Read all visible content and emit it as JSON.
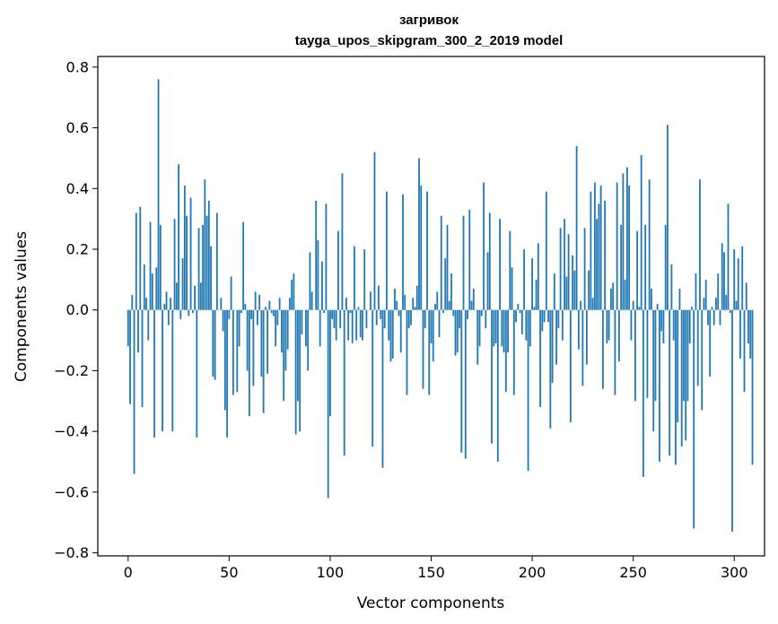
{
  "chart_data": {
    "type": "bar",
    "title": "загривок",
    "subtitle": "tayga_upos_skipgram_300_2_2019 model",
    "xlabel": "Vector components",
    "ylabel": "Components values",
    "xlim": [
      -15,
      315
    ],
    "ylim": [
      -0.81,
      0.835
    ],
    "xticks": [
      0,
      50,
      100,
      150,
      200,
      250,
      300
    ],
    "yticks": [
      -0.8,
      -0.6,
      -0.4,
      -0.2,
      0.0,
      0.2,
      0.4,
      0.6,
      0.8
    ],
    "ytick_labels": [
      "−0.8",
      "−0.6",
      "−0.4",
      "−0.2",
      "0.0",
      "0.2",
      "0.4",
      "0.6",
      "0.8"
    ],
    "bar_color": "#1f77b4",
    "values": [
      -0.12,
      -0.31,
      0.05,
      -0.54,
      0.32,
      -0.14,
      0.34,
      -0.32,
      0.15,
      0.04,
      -0.1,
      0.29,
      0.12,
      -0.42,
      0.14,
      0.76,
      0.28,
      -0.4,
      0.02,
      0.06,
      -0.05,
      0.04,
      -0.4,
      0.3,
      0.09,
      0.48,
      -0.03,
      0.17,
      0.41,
      0.31,
      -0.02,
      0.37,
      -0.01,
      0.08,
      -0.42,
      0.27,
      0.09,
      0.28,
      0.43,
      0.31,
      0.36,
      0.21,
      -0.22,
      -0.23,
      0.32,
      0.0,
      0.04,
      -0.07,
      -0.33,
      -0.42,
      -0.03,
      0.11,
      -0.28,
      0.0,
      -0.27,
      -0.12,
      -0.01,
      0.29,
      0.02,
      -0.2,
      -0.35,
      -0.03,
      -0.25,
      0.06,
      -0.05,
      0.05,
      -0.22,
      -0.34,
      0.01,
      -0.21,
      0.03,
      -0.01,
      -0.02,
      -0.12,
      -0.05,
      0.04,
      -0.14,
      -0.3,
      -0.2,
      -0.13,
      0.04,
      0.1,
      0.12,
      -0.41,
      -0.3,
      -0.4,
      -0.08,
      0.0,
      -0.12,
      -0.2,
      0.19,
      0.06,
      0.0,
      0.36,
      0.23,
      -0.12,
      0.16,
      -0.01,
      0.35,
      -0.62,
      -0.35,
      -0.03,
      -0.06,
      -0.1,
      0.26,
      -0.06,
      0.45,
      -0.48,
      0.04,
      -0.1,
      -0.01,
      -0.11,
      0.21,
      -0.1,
      0.01,
      -0.09,
      -0.1,
      0.2,
      -0.06,
      0.0,
      0.06,
      -0.45,
      0.52,
      -0.05,
      0.08,
      -0.03,
      -0.52,
      -0.06,
      0.39,
      -0.1,
      -0.17,
      -0.16,
      0.07,
      0.03,
      -0.02,
      -0.14,
      0.38,
      0.05,
      -0.28,
      -0.06,
      -0.05,
      0.04,
      0.01,
      0.08,
      0.5,
      0.41,
      -0.26,
      -0.06,
      0.39,
      -0.28,
      -0.11,
      -0.17,
      0.02,
      0.06,
      -0.09,
      0.31,
      -0.01,
      0.17,
      0.28,
      0.03,
      0.12,
      -0.02,
      -0.15,
      -0.14,
      -0.06,
      -0.47,
      0.31,
      -0.49,
      -0.03,
      0.33,
      0.03,
      0.07,
      0.0,
      -0.18,
      -0.12,
      -0.02,
      0.42,
      -0.06,
      0.19,
      0.32,
      -0.44,
      -0.12,
      -0.11,
      -0.5,
      0.3,
      -0.12,
      -0.14,
      -0.27,
      -0.14,
      0.26,
      0.14,
      -0.28,
      -0.04,
      0.02,
      -0.01,
      -0.08,
      0.2,
      -0.1,
      -0.53,
      -0.12,
      0.17,
      0.01,
      0.1,
      0.22,
      -0.32,
      -0.07,
      -0.04,
      0.39,
      -0.04,
      -0.39,
      -0.24,
      0.12,
      -0.18,
      -0.06,
      0.27,
      -0.1,
      0.3,
      0.11,
      0.25,
      -0.37,
      0.18,
      0.13,
      0.54,
      -0.13,
      0.03,
      -0.25,
      0.27,
      -0.18,
      0.13,
      0.39,
      0.04,
      0.42,
      0.3,
      0.35,
      0.41,
      -0.26,
      0.36,
      -0.11,
      -0.1,
      0.07,
      0.09,
      -0.28,
      0.42,
      -0.17,
      0.28,
      0.45,
      0.1,
      0.47,
      0.41,
      -0.1,
      0.03,
      -0.3,
      0.26,
      0.01,
      0.51,
      -0.55,
      0.28,
      -0.29,
      0.43,
      0.07,
      -0.4,
      -0.3,
      0.02,
      -0.5,
      -0.07,
      -0.11,
      0.28,
      0.61,
      -0.48,
      0.15,
      -0.1,
      -0.51,
      -0.37,
      0.07,
      -0.45,
      -0.3,
      -0.43,
      -0.3,
      -0.11,
      0.01,
      -0.72,
      0.12,
      -0.25,
      0.43,
      -0.33,
      0.04,
      0.1,
      -0.05,
      -0.22,
      0.01,
      -0.05,
      0.04,
      0.12,
      -0.05,
      0.22,
      0.19,
      0.05,
      0.35,
      -0.01,
      -0.73,
      0.2,
      0.03,
      0.17,
      -0.16,
      0.21,
      -0.27,
      0.09,
      -0.11,
      -0.16,
      -0.51
    ]
  }
}
